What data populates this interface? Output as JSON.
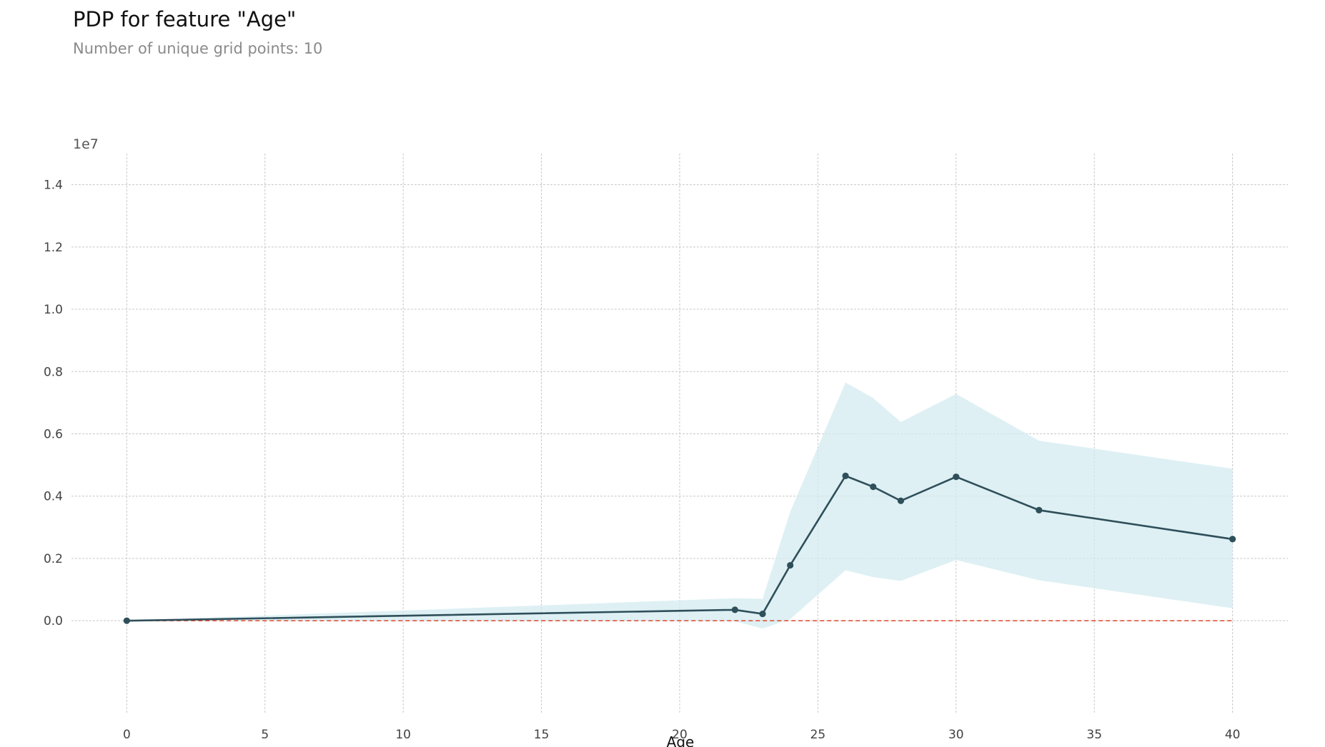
{
  "title": "PDP for feature \"Age\"",
  "subtitle": "Number of unique grid points: 10",
  "chart_data": {
    "type": "line",
    "xlabel": "Age",
    "ylabel": "",
    "y_offset_label": "1e7",
    "xlim": [
      -2,
      42
    ],
    "ylim": [
      -0.3,
      1.5
    ],
    "x_ticks": [
      "0",
      "5",
      "10",
      "15",
      "20",
      "25",
      "30",
      "35",
      "40"
    ],
    "y_ticks": [
      "0.0",
      "0.2",
      "0.4",
      "0.6",
      "0.8",
      "1.0",
      "1.2",
      "1.4"
    ],
    "grid": true,
    "series": [
      {
        "x": [
          0,
          22,
          23,
          24,
          26,
          27,
          28,
          30,
          33,
          40
        ],
        "y": [
          0.0,
          0.035,
          0.022,
          0.178,
          0.465,
          0.43,
          0.385,
          0.462,
          0.355,
          0.262
        ],
        "color": "#2f4f5a",
        "band_upper": [
          0.0,
          0.072,
          0.07,
          0.35,
          0.765,
          0.715,
          0.638,
          0.728,
          0.578,
          0.488
        ],
        "band_lower": [
          0.0,
          -0.002,
          -0.025,
          0.005,
          0.162,
          0.14,
          0.128,
          0.195,
          0.13,
          0.04
        ],
        "band_color": "#d3ebf0"
      }
    ],
    "baseline": {
      "y": 0.0,
      "color": "#e0533b",
      "style": "dashed"
    },
    "grid_color": "#c8c8c8"
  }
}
